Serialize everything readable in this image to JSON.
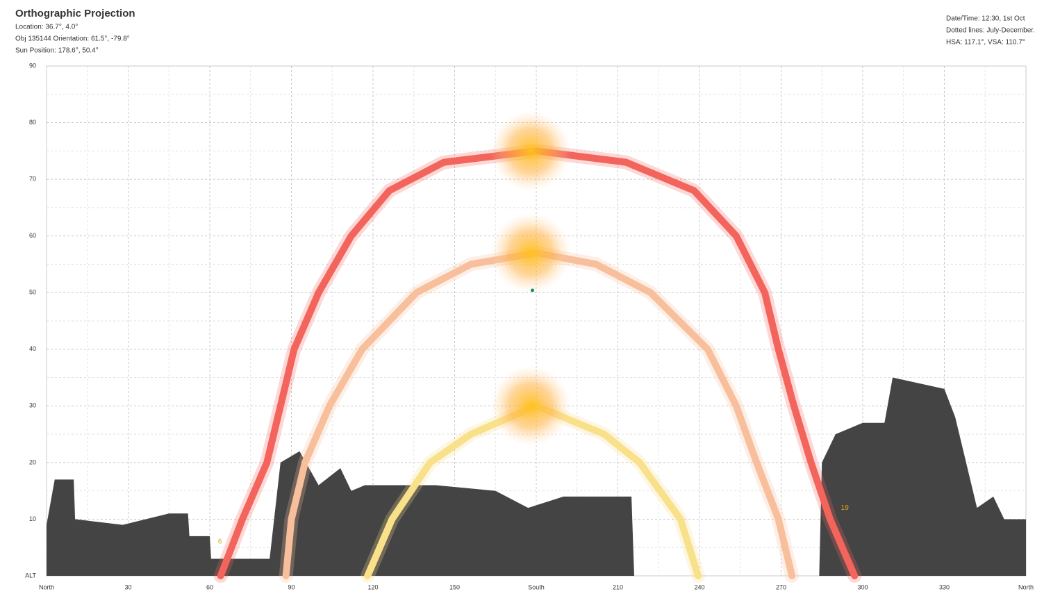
{
  "chart_data": {
    "type": "sunpath",
    "title": "Orthographic Projection",
    "info_left": [
      "Location: 36.7°, 4.0°",
      "Obj 135144 Orientation: 61.5°, -79.8°",
      "Sun Position: 178.6°, 50.4°"
    ],
    "info_right": [
      "Date/Time: 12:30, 1st Oct",
      "Dotted lines: July-December.",
      "HSA: 117.1°, VSA: 110.7°"
    ],
    "xlim": [
      0,
      360
    ],
    "ylim": [
      0,
      90
    ],
    "xticks": [
      {
        "value": 0,
        "label": "North"
      },
      30,
      60,
      90,
      120,
      150,
      {
        "value": 180,
        "label": "South"
      },
      210,
      240,
      270,
      300,
      330,
      {
        "value": 360,
        "label": "North"
      }
    ],
    "yticks": [
      {
        "value": 0,
        "label": "ALT"
      },
      10,
      20,
      30,
      40,
      50,
      60,
      70,
      80,
      90
    ],
    "grid": true,
    "series": [
      {
        "color": "#f2645c",
        "x": [
          64,
          72,
          81,
          86,
          91,
          100,
          112,
          126,
          146,
          180,
          213,
          238,
          253.5,
          264,
          269,
          274.7,
          281,
          288,
          297
        ],
        "values": [
          0,
          10,
          20,
          30,
          40,
          50,
          60,
          68,
          73,
          75,
          73,
          68,
          60,
          50,
          40,
          30,
          20,
          10,
          0
        ]
      },
      {
        "color": "#f7bf9c",
        "x": [
          88,
          90,
          95,
          104,
          116,
          136,
          156,
          180,
          202,
          222,
          243,
          253.5,
          261,
          269,
          274
        ],
        "values": [
          0,
          10,
          20,
          30,
          40,
          50,
          55,
          57,
          55,
          50,
          40,
          30,
          20,
          10,
          0
        ]
      },
      {
        "color": "#f9e08a",
        "x": [
          118,
          127,
          141,
          156,
          180,
          205,
          218,
          233,
          239.5
        ],
        "values": [
          0,
          10,
          20,
          25,
          30,
          25,
          20,
          10,
          0
        ]
      }
    ],
    "obstruction": {
      "color": "#444444",
      "x": [
        0,
        3,
        10,
        10.5,
        28,
        45,
        52,
        52.5,
        60,
        60.5,
        82,
        86,
        93,
        100,
        108,
        112,
        117,
        124,
        143,
        165,
        177,
        190,
        215,
        216,
        284,
        285,
        290,
        300,
        308,
        311,
        330,
        334,
        342,
        348,
        352,
        360
      ],
      "values": [
        9,
        17,
        17,
        10,
        9,
        11,
        11,
        7,
        7,
        3,
        3,
        20,
        22,
        16,
        19,
        15,
        16,
        16,
        16,
        15,
        12,
        14,
        14,
        0,
        0,
        20,
        25,
        27,
        27,
        35,
        33,
        28,
        12,
        14,
        10,
        10
      ]
    },
    "sun_position": {
      "x": 178.6,
      "y": 50.4
    },
    "annotations": [
      {
        "text": "6",
        "x": 63,
        "y": 6
      },
      {
        "text": "19",
        "x": 292,
        "y": 12
      }
    ]
  }
}
